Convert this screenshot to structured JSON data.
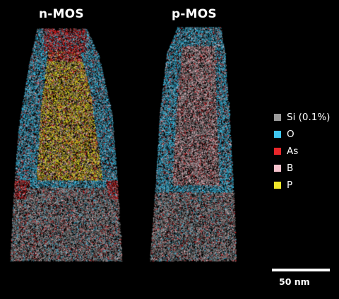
{
  "panels": {
    "nmos": {
      "title": "n-MOS"
    },
    "pmos": {
      "title": "p-MOS"
    }
  },
  "legend": {
    "items": [
      {
        "label": "Si (0.1%)",
        "color": "#9a9a9a",
        "icon": "gray-square-icon"
      },
      {
        "label": "O",
        "color": "#3fc6f0",
        "icon": "cyan-square-icon"
      },
      {
        "label": "As",
        "color": "#e8262a",
        "icon": "red-square-icon"
      },
      {
        "label": "B",
        "color": "#f5c2cc",
        "icon": "pink-square-icon"
      },
      {
        "label": "P",
        "color": "#efe62a",
        "icon": "yellow-square-icon"
      }
    ]
  },
  "scalebar": {
    "label": "50 nm"
  }
}
